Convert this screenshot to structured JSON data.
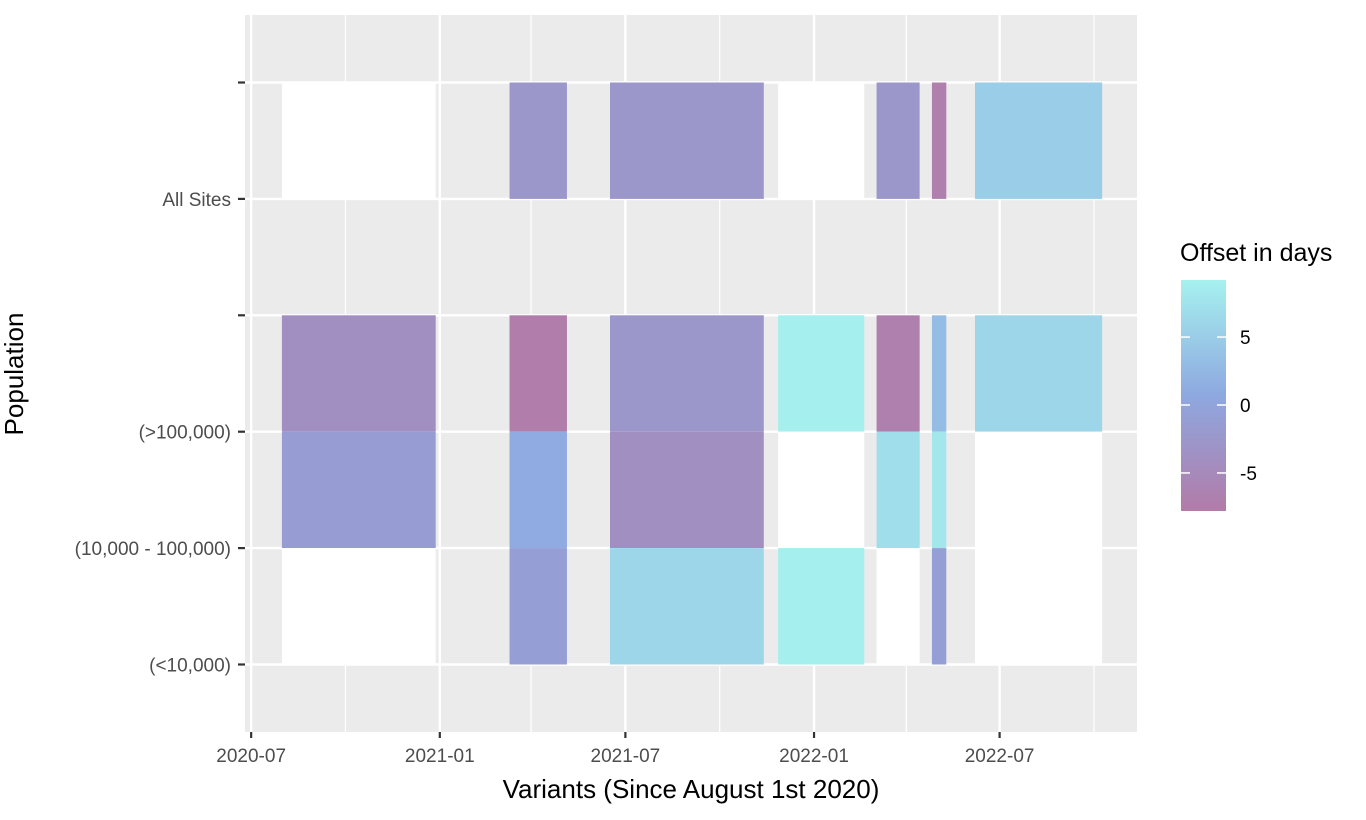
{
  "chart_data": {
    "type": "heatmap",
    "title": "",
    "xlabel": "Variants (Since August 1st 2020)",
    "ylabel": "Population",
    "x_ticks": [
      "2020-07",
      "2021-01",
      "2021-07",
      "2022-01",
      "2022-07"
    ],
    "y_ticks": [
      "(<10,000)",
      "(10,000 - 100,000)",
      "(>100,000)",
      "",
      "All Sites",
      ""
    ],
    "x_range_days": [
      -3,
      432
    ],
    "y_range": [
      0.42,
      6.58
    ],
    "legend": {
      "title": "Offset in days",
      "labels": [
        "5",
        "0",
        "-5"
      ],
      "label_values": [
        5,
        0,
        -5
      ],
      "range": [
        -7.8,
        9.2
      ],
      "position": "right"
    },
    "tiles": [
      {
        "population": "All Sites",
        "x_start": 15,
        "x_end": 90,
        "y_bottom": 5,
        "y_top": 6,
        "offset": null
      },
      {
        "population": "All Sites",
        "x_start": 126,
        "x_end": 154,
        "y_bottom": 5,
        "y_top": 6,
        "offset": -2.5
      },
      {
        "population": "All Sites",
        "x_start": 175,
        "x_end": 250,
        "y_bottom": 5,
        "y_top": 6,
        "offset": -2.5
      },
      {
        "population": "All Sites",
        "x_start": 257,
        "x_end": 299,
        "y_bottom": 5,
        "y_top": 6,
        "offset": null
      },
      {
        "population": "All Sites",
        "x_start": 305,
        "x_end": 326,
        "y_bottom": 5,
        "y_top": 6,
        "offset": -2.5
      },
      {
        "population": "All Sites",
        "x_start": 332,
        "x_end": 339,
        "y_bottom": 5,
        "y_top": 6,
        "offset": -7
      },
      {
        "population": "All Sites",
        "x_start": 353,
        "x_end": 415,
        "y_bottom": 5,
        "y_top": 6,
        "offset": 5
      },
      {
        "population": "(>100,000)",
        "x_start": 15,
        "x_end": 90,
        "y_bottom": 3,
        "y_top": 4,
        "offset": -4
      },
      {
        "population": "(>100,000)",
        "x_start": 126,
        "x_end": 154,
        "y_bottom": 3,
        "y_top": 4,
        "offset": -7.5
      },
      {
        "population": "(>100,000)",
        "x_start": 175,
        "x_end": 250,
        "y_bottom": 3,
        "y_top": 4,
        "offset": -2.5
      },
      {
        "population": "(>100,000)",
        "x_start": 257,
        "x_end": 299,
        "y_bottom": 3,
        "y_top": 4,
        "offset": 9
      },
      {
        "population": "(>100,000)",
        "x_start": 305,
        "x_end": 326,
        "y_bottom": 3,
        "y_top": 4,
        "offset": -7
      },
      {
        "population": "(>100,000)",
        "x_start": 332,
        "x_end": 339,
        "y_bottom": 3,
        "y_top": 4,
        "offset": 3
      },
      {
        "population": "(>100,000)",
        "x_start": 353,
        "x_end": 415,
        "y_bottom": 3,
        "y_top": 4,
        "offset": 6
      },
      {
        "population": "(10,000 - 100,000)",
        "x_start": 15,
        "x_end": 90,
        "y_bottom": 2,
        "y_top": 3,
        "offset": -1.5
      },
      {
        "population": "(10,000 - 100,000)",
        "x_start": 126,
        "x_end": 154,
        "y_bottom": 2,
        "y_top": 3,
        "offset": 1
      },
      {
        "population": "(10,000 - 100,000)",
        "x_start": 175,
        "x_end": 250,
        "y_bottom": 2,
        "y_top": 3,
        "offset": -4
      },
      {
        "population": "(10,000 - 100,000)",
        "x_start": 257,
        "x_end": 299,
        "y_bottom": 2,
        "y_top": 3,
        "offset": null
      },
      {
        "population": "(10,000 - 100,000)",
        "x_start": 305,
        "x_end": 326,
        "y_bottom": 2,
        "y_top": 3,
        "offset": 7
      },
      {
        "population": "(10,000 - 100,000)",
        "x_start": 332,
        "x_end": 339,
        "y_bottom": 2,
        "y_top": 3,
        "offset": 8
      },
      {
        "population": "(10,000 - 100,000)",
        "x_start": 353,
        "x_end": 415,
        "y_bottom": 2,
        "y_top": 3,
        "offset": null
      },
      {
        "population": "(<10,000)",
        "x_start": 15,
        "x_end": 90,
        "y_bottom": 1,
        "y_top": 2,
        "offset": null
      },
      {
        "population": "(<10,000)",
        "x_start": 126,
        "x_end": 154,
        "y_bottom": 1,
        "y_top": 2,
        "offset": -1
      },
      {
        "population": "(<10,000)",
        "x_start": 175,
        "x_end": 250,
        "y_bottom": 1,
        "y_top": 2,
        "offset": 6
      },
      {
        "population": "(<10,000)",
        "x_start": 257,
        "x_end": 299,
        "y_bottom": 1,
        "y_top": 2,
        "offset": 9
      },
      {
        "population": "(<10,000)",
        "x_start": 305,
        "x_end": 326,
        "y_bottom": 1,
        "y_top": 2,
        "offset": null
      },
      {
        "population": "(<10,000)",
        "x_start": 332,
        "x_end": 339,
        "y_bottom": 1,
        "y_top": 2,
        "offset": -1
      },
      {
        "population": "(<10,000)",
        "x_start": 353,
        "x_end": 415,
        "y_bottom": 1,
        "y_top": 2,
        "offset": null
      }
    ],
    "colors": {
      "low": "#b27ba8",
      "mid": "#8ea8e0",
      "high": "#a6f1ef",
      "missing": "#ffffff",
      "panel": "#ebebeb",
      "grid": "#ffffff"
    }
  }
}
